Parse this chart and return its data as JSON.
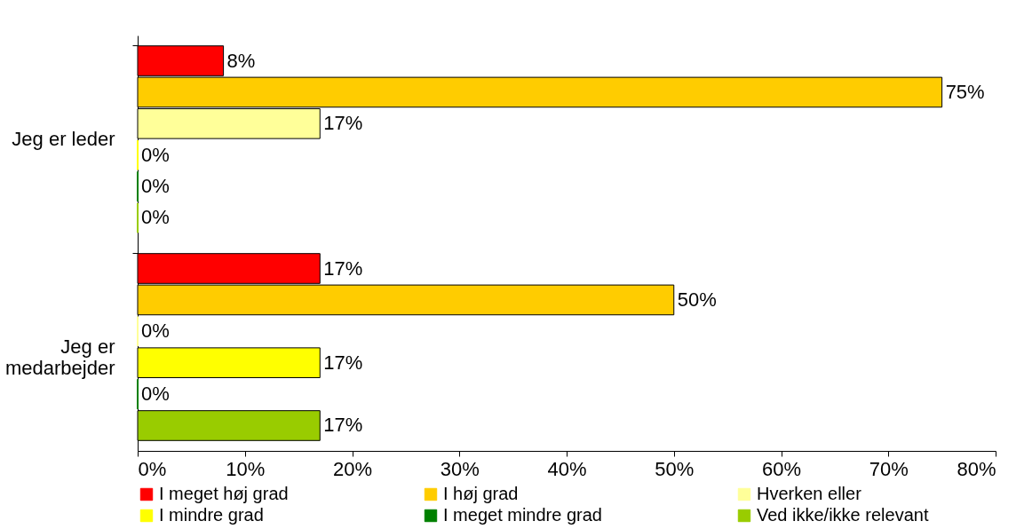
{
  "chart_data": {
    "type": "bar",
    "orientation": "horizontal",
    "categories": [
      "Jeg er leder",
      "Jeg er medarbejder"
    ],
    "series": [
      {
        "name": "I meget høj grad",
        "color": "#ff0000",
        "values": [
          8,
          17
        ],
        "value_labels": [
          "8%",
          "17%"
        ]
      },
      {
        "name": "I høj grad",
        "color": "#ffcc00",
        "values": [
          75,
          50
        ],
        "value_labels": [
          "75%",
          "50%"
        ]
      },
      {
        "name": "Hverken eller",
        "color": "#ffff99",
        "values": [
          17,
          0
        ],
        "value_labels": [
          "17%",
          "0%"
        ]
      },
      {
        "name": "I mindre grad",
        "color": "#ffff00",
        "values": [
          0,
          17
        ],
        "value_labels": [
          "0%",
          "17%"
        ]
      },
      {
        "name": "I meget mindre grad",
        "color": "#008000",
        "values": [
          0,
          0
        ],
        "value_labels": [
          "0%",
          "0%"
        ]
      },
      {
        "name": "Ved ikke/ikke relevant",
        "color": "#99cc00",
        "values": [
          0,
          17
        ],
        "value_labels": [
          "0%",
          "17%"
        ]
      }
    ],
    "xlim": [
      0,
      80
    ],
    "xticks": [
      {
        "value": 0,
        "label": "0%"
      },
      {
        "value": 10,
        "label": "10%"
      },
      {
        "value": 20,
        "label": "20%"
      },
      {
        "value": 30,
        "label": "30%"
      },
      {
        "value": 40,
        "label": "40%"
      },
      {
        "value": 50,
        "label": "50%"
      },
      {
        "value": 60,
        "label": "60%"
      },
      {
        "value": 70,
        "label": "70%"
      },
      {
        "value": 80,
        "label": "80%"
      }
    ],
    "legend": "bottom",
    "grid": false
  }
}
